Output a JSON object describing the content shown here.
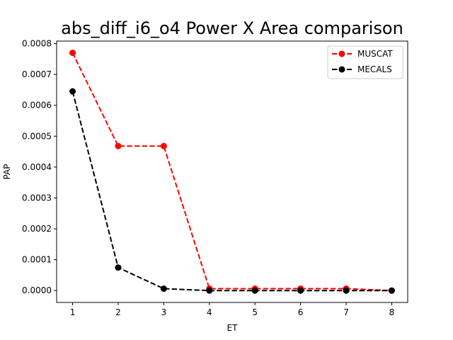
{
  "chart_data": {
    "type": "line",
    "title": "abs_diff_i6_o4 Power X Area comparison",
    "xlabel": "ET",
    "ylabel": "PAP",
    "x": [
      1,
      2,
      3,
      4,
      5,
      6,
      7,
      8
    ],
    "xticks": [
      "1",
      "2",
      "3",
      "4",
      "5",
      "6",
      "7",
      "8"
    ],
    "xlim": [
      0.65,
      8.35
    ],
    "yticks": [
      "0.0000",
      "0.0001",
      "0.0002",
      "0.0003",
      "0.0004",
      "0.0005",
      "0.0006",
      "0.0007",
      "0.0008"
    ],
    "ytick_values": [
      0,
      0.0001,
      0.0002,
      0.0003,
      0.0004,
      0.0005,
      0.0006,
      0.0007,
      0.0008
    ],
    "ylim": [
      -3.85e-05,
      0.000808
    ],
    "grid": false,
    "legend_position": "top-right",
    "series": [
      {
        "name": "MUSCAT",
        "color": "#ff0000",
        "style": "dashed",
        "marker": "circle",
        "values": [
          0.00077,
          0.000468,
          0.000468,
          6.2e-06,
          6.2e-06,
          6.2e-06,
          6.2e-06,
          0.0
        ]
      },
      {
        "name": "MECALS",
        "color": "#000000",
        "style": "dashed",
        "marker": "circle",
        "values": [
          0.000645,
          7.45e-05,
          6.2e-06,
          0.0,
          0.0,
          0.0,
          0.0,
          0.0
        ]
      }
    ]
  }
}
